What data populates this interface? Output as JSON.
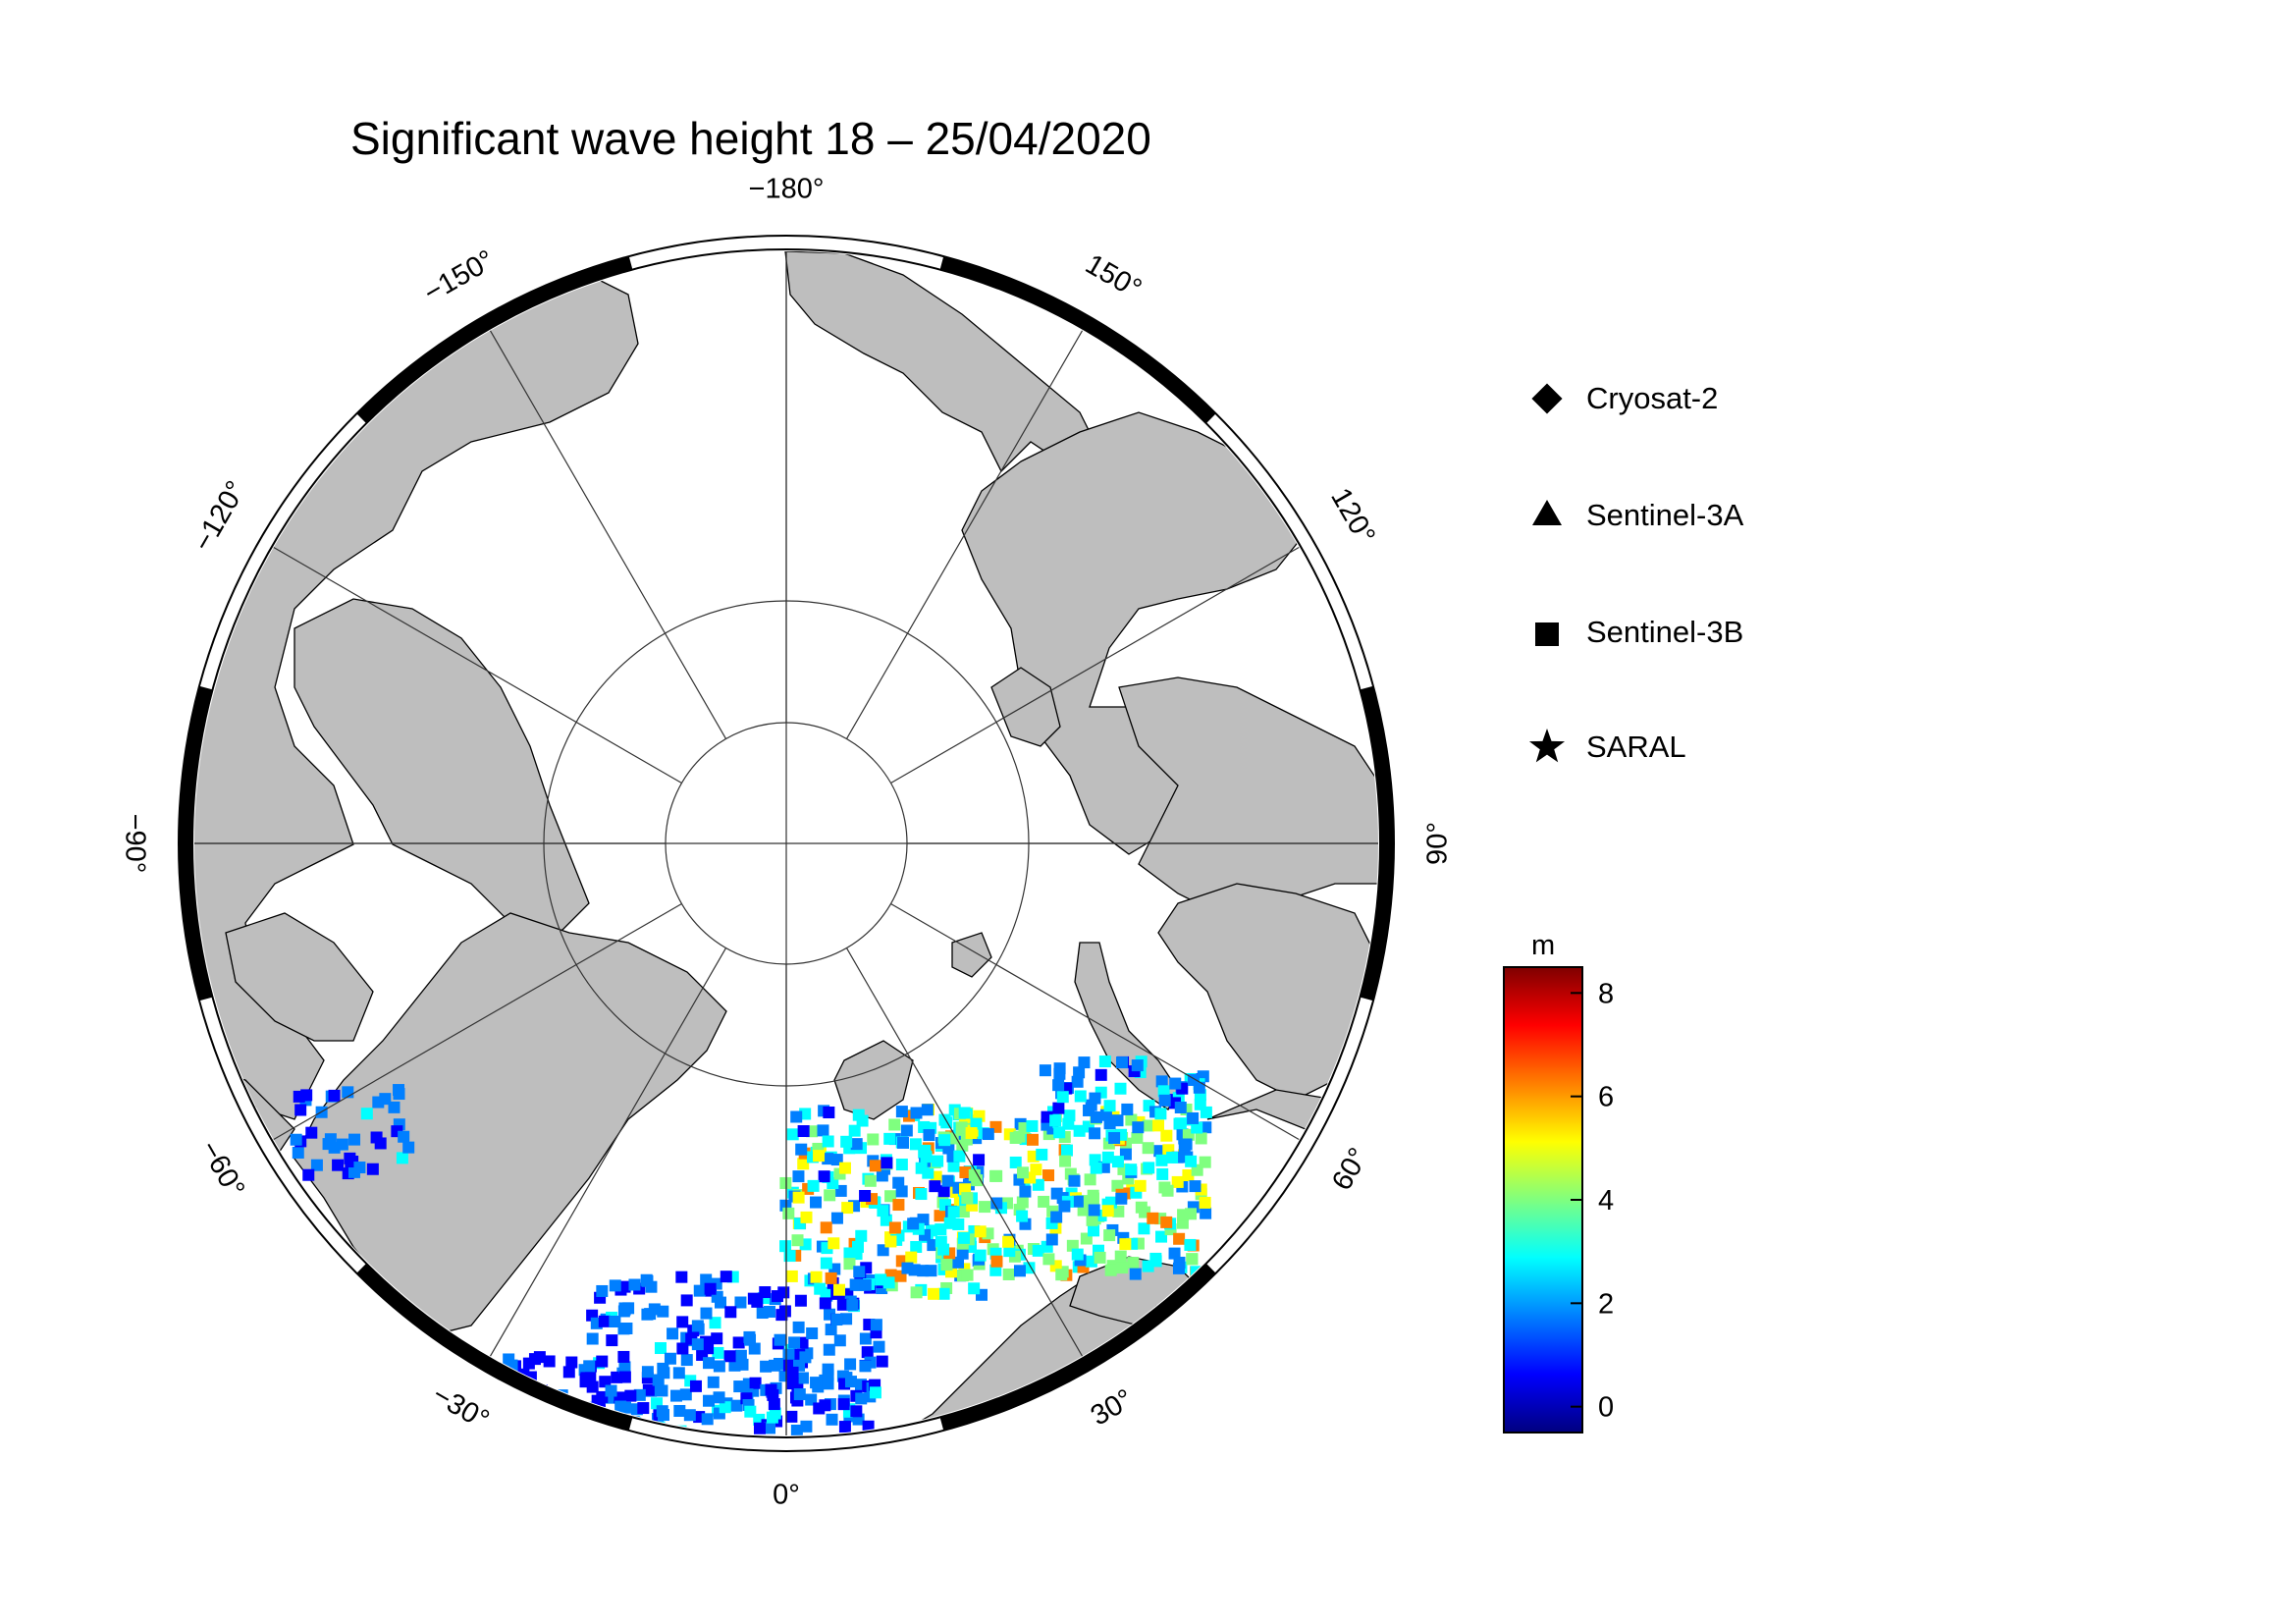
{
  "title": "Significant wave height 18 – 25/04/2020",
  "map": {
    "projection": "north polar stereographic",
    "ocean_color": "#ffffff",
    "land_color": "#bebebe",
    "graticule_color": "#333333",
    "longitude_labels": [
      {
        "lon": -180,
        "text": "−180°"
      },
      {
        "lon": 150,
        "text": "150°"
      },
      {
        "lon": 120,
        "text": "120°"
      },
      {
        "lon": 90,
        "text": "90°"
      },
      {
        "lon": 60,
        "text": "60°"
      },
      {
        "lon": 30,
        "text": "30°"
      },
      {
        "lon": 0,
        "text": "0°"
      },
      {
        "lon": -30,
        "text": "−30°"
      },
      {
        "lon": -60,
        "text": "−60°"
      },
      {
        "lon": -90,
        "text": "−90°"
      },
      {
        "lon": -120,
        "text": "−120°"
      },
      {
        "lon": -150,
        "text": "−150°"
      }
    ],
    "latitude_circles": [
      60,
      70,
      80
    ]
  },
  "legend": [
    {
      "symbol": "diamond",
      "label": "Cryosat-2"
    },
    {
      "symbol": "triangle",
      "label": "Sentinel-3A"
    },
    {
      "symbol": "square",
      "label": "Sentinel-3B"
    },
    {
      "symbol": "star",
      "label": "SARAL"
    }
  ],
  "colorbar": {
    "unit": "m",
    "min": -0.5,
    "max": 8.5,
    "ticks": [
      0,
      2,
      4,
      6,
      8
    ],
    "colors": [
      "#00007f",
      "#0000ff",
      "#007fff",
      "#00ffff",
      "#7fff7f",
      "#ffff00",
      "#ff7f00",
      "#ff0000",
      "#7f0000"
    ]
  }
}
